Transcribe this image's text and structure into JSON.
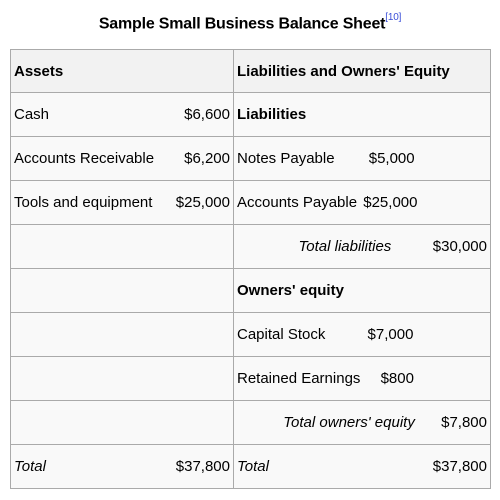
{
  "caption": {
    "title": "Sample Small Business Balance Sheet",
    "ref": "[10]"
  },
  "header": {
    "assets": "Assets",
    "liabilities_equity": "Liabilities and Owners' Equity"
  },
  "rows": [
    {
      "left_label": "Cash",
      "left_value": "$6,600",
      "right_label": "Liabilities",
      "right_value": ""
    },
    {
      "left_label": "Accounts Receivable",
      "left_value": "$6,200",
      "right_label": "Notes Payable",
      "right_value": "$5,000"
    },
    {
      "left_label": "Tools and equipment",
      "left_value": "$25,000",
      "right_label": "Accounts Payable",
      "right_value": "$25,000"
    },
    {
      "left_label": "",
      "left_value": "",
      "right_label": "Total liabilities",
      "right_value": "$30,000"
    },
    {
      "left_label": "",
      "left_value": "",
      "right_label": "Owners' equity",
      "right_value": ""
    },
    {
      "left_label": "",
      "left_value": "",
      "right_label": "Capital Stock",
      "right_value": "$7,000"
    },
    {
      "left_label": "",
      "left_value": "",
      "right_label": "Retained Earnings",
      "right_value": "$800"
    },
    {
      "left_label": "",
      "left_value": "",
      "right_label": "Total owners' equity",
      "right_value": "$7,800"
    },
    {
      "left_label": "Total",
      "left_value": "$37,800",
      "right_label": "Total",
      "right_value": "$37,800"
    }
  ]
}
